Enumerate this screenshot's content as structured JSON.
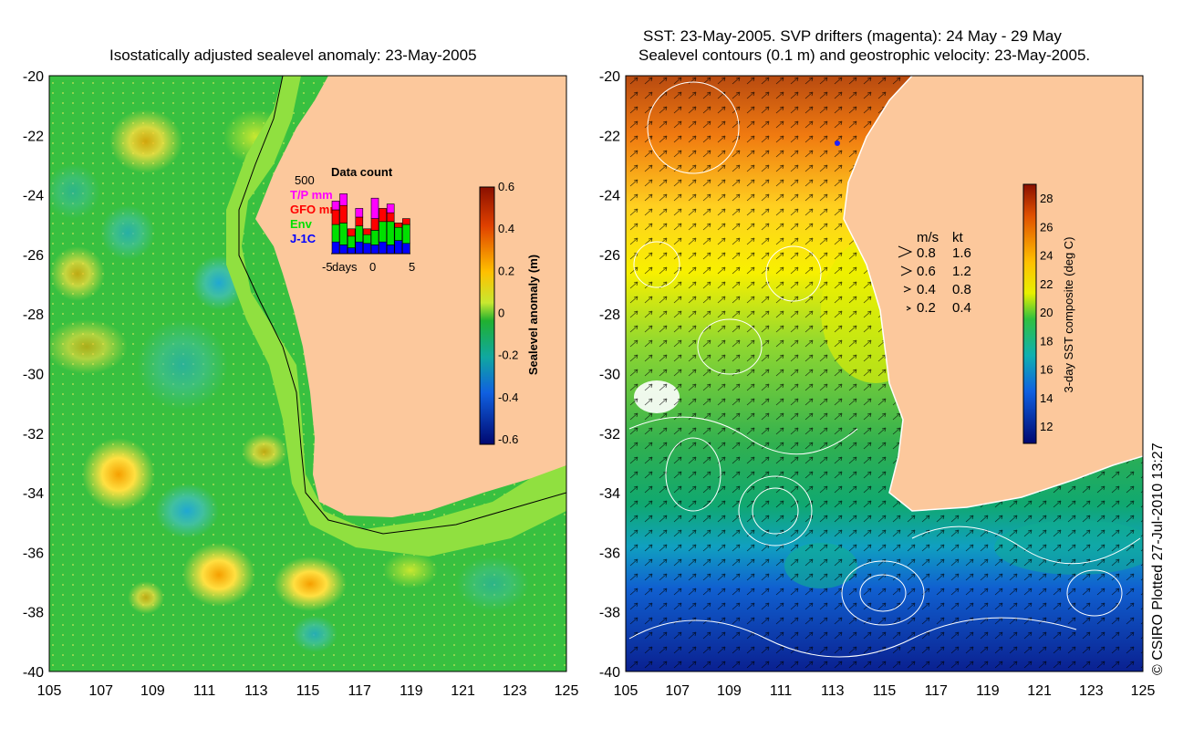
{
  "left_panel": {
    "title": "Isostatically adjusted sealevel anomaly: 23-May-2005",
    "y_ticks": [
      "-20",
      "-22",
      "-24",
      "-26",
      "-28",
      "-30",
      "-32",
      "-34",
      "-36",
      "-38",
      "-40"
    ],
    "x_ticks": [
      "105",
      "107",
      "109",
      "111",
      "113",
      "115",
      "117",
      "119",
      "121",
      "123",
      "125"
    ],
    "colorbar": {
      "label": "Sealevel anomaly (m)",
      "ticks": [
        "0.6",
        "0.4",
        "0.2",
        "0",
        "-0.2",
        "-0.4",
        "-0.6"
      ]
    },
    "data_count": {
      "title": "Data count",
      "y_max_label": "500",
      "x_label": "days",
      "x_ticks": [
        "-5",
        "0",
        "5"
      ],
      "legend": [
        {
          "label": "T/P mm",
          "color": "#ff00ff"
        },
        {
          "label": "GFO mm",
          "color": "#ff0000"
        },
        {
          "label": "Env",
          "color": "#00e000"
        },
        {
          "label": "J-1C",
          "color": "#0000ff"
        }
      ],
      "days": [
        -5,
        -4,
        -3,
        -2,
        -1,
        0,
        1,
        2,
        3,
        4
      ],
      "tp": [
        60,
        80,
        0,
        60,
        0,
        140,
        0,
        60,
        0,
        0
      ],
      "gfo": [
        100,
        120,
        50,
        60,
        40,
        80,
        90,
        60,
        30,
        40
      ],
      "env": [
        120,
        150,
        80,
        110,
        60,
        100,
        140,
        160,
        90,
        130
      ],
      "j1c": [
        80,
        60,
        40,
        80,
        70,
        60,
        80,
        60,
        90,
        70
      ]
    }
  },
  "right_panel": {
    "title_line1": "SST: 23-May-2005. SVP drifters (magenta): 24 May - 29 May",
    "title_line2": "Sealevel contours (0.1 m) and geostrophic velocity: 23-May-2005.",
    "y_ticks": [
      "-20",
      "-22",
      "-24",
      "-26",
      "-28",
      "-30",
      "-32",
      "-34",
      "-36",
      "-38",
      "-40"
    ],
    "x_ticks": [
      "105",
      "107",
      "109",
      "111",
      "113",
      "115",
      "117",
      "119",
      "121",
      "123",
      "125"
    ],
    "colorbar": {
      "label": "3-day SST composite (deg C)",
      "ticks": [
        "28",
        "26",
        "24",
        "22",
        "20",
        "18",
        "16",
        "14",
        "12"
      ]
    },
    "velocity_legend": {
      "header_ms": "m/s",
      "header_kt": "kt",
      "rows": [
        {
          "ms": "0.8",
          "kt": "1.6"
        },
        {
          "ms": "0.6",
          "kt": "1.2"
        },
        {
          "ms": "0.4",
          "kt": "0.8"
        },
        {
          "ms": "0.2",
          "kt": "0.4"
        }
      ]
    }
  },
  "credit": "© CSIRO Plotted 27-Jul-2010 13:27"
}
